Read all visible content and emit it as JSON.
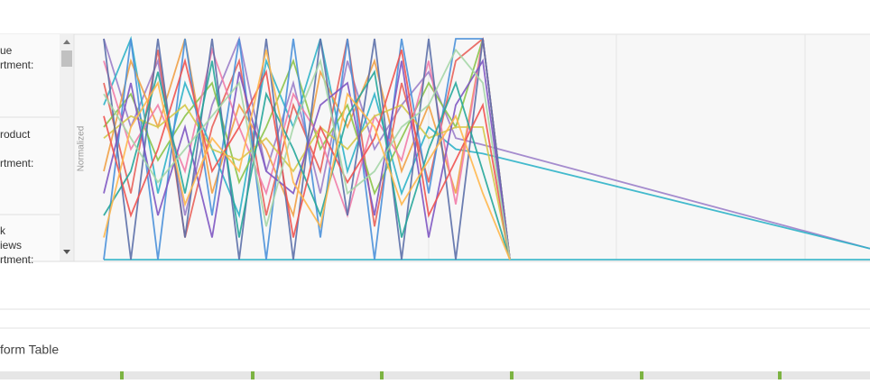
{
  "left_panel": {
    "labels": [
      "ue",
      "rtment:",
      "roduct",
      "rtment:",
      "k",
      "iews",
      "rtment:"
    ]
  },
  "section_title": "form Table",
  "chart_data": {
    "type": "line",
    "ylabel": "Normalized",
    "ylim": [
      0,
      1
    ],
    "xlim": [
      0,
      28.3
    ],
    "series": [
      {
        "color": "#9b7fc9",
        "x": [
          0,
          1,
          2,
          3,
          4,
          5,
          6,
          7,
          8,
          9,
          10,
          11,
          12,
          13,
          14,
          28.3
        ],
        "values": [
          1,
          0.6,
          0.9,
          0.2,
          0.7,
          1,
          0.4,
          0.8,
          0.3,
          0.9,
          0.5,
          0.7,
          0.85,
          0.55,
          0.52,
          0.05
        ]
      },
      {
        "color": "#2fb3c8",
        "x": [
          0,
          1,
          2,
          3,
          4,
          5,
          6,
          7,
          8,
          9,
          10,
          11,
          12,
          13,
          14,
          28.3
        ],
        "values": [
          0.7,
          1,
          0.3,
          0.8,
          0.5,
          0.2,
          0.9,
          0.6,
          1,
          0.4,
          0.75,
          0.3,
          0.6,
          0.5,
          0.48,
          0.05
        ]
      },
      {
        "color": "#2fb3c8",
        "x": [
          0,
          28.3
        ],
        "values": [
          0,
          0
        ]
      },
      {
        "color": "#e8615a",
        "x": [
          0,
          1,
          2,
          3,
          4,
          5,
          6,
          7,
          8,
          9,
          10,
          11,
          12,
          13,
          14,
          15
        ],
        "values": [
          0.8,
          0.3,
          0.95,
          0.1,
          0.6,
          0.9,
          0.2,
          0.7,
          0.4,
          1,
          0.15,
          0.8,
          0.35,
          0.9,
          1,
          0
        ]
      },
      {
        "color": "#f0a046",
        "x": [
          0,
          1,
          2,
          3,
          4,
          5,
          6,
          7,
          8,
          9,
          10,
          11,
          12,
          13,
          14,
          15
        ],
        "values": [
          0.4,
          0.9,
          0.6,
          1,
          0.3,
          0.7,
          0.5,
          0.2,
          0.85,
          0.6,
          0.9,
          0.4,
          0.7,
          0.3,
          1,
          0
        ]
      },
      {
        "color": "#8bc34a",
        "x": [
          0,
          1,
          2,
          3,
          4,
          5,
          6,
          7,
          8,
          9,
          10,
          11,
          12,
          13,
          14,
          15
        ],
        "values": [
          0.6,
          0.75,
          0.45,
          0.65,
          0.8,
          0.35,
          0.6,
          0.9,
          0.5,
          0.7,
          0.3,
          0.55,
          0.8,
          0.6,
          1,
          0
        ]
      },
      {
        "color": "#4a90d9",
        "x": [
          0,
          1,
          2,
          3,
          4,
          5,
          6,
          7,
          8,
          9,
          10,
          11,
          12,
          13,
          14,
          15
        ],
        "values": [
          0,
          1,
          0,
          1,
          0.2,
          1,
          0,
          1,
          0.1,
          1,
          0,
          1,
          0.3,
          1,
          1,
          0
        ]
      },
      {
        "color": "#f17ca8",
        "x": [
          0,
          1,
          2,
          3,
          4,
          5,
          6,
          7,
          8,
          9,
          10,
          11,
          12,
          13,
          14,
          15
        ],
        "values": [
          0.9,
          0.5,
          0.7,
          0.4,
          0.95,
          0.6,
          0.3,
          0.75,
          0.55,
          0.2,
          0.65,
          0.45,
          0.9,
          0.25,
          1,
          0
        ]
      },
      {
        "color": "#d4c84a",
        "x": [
          0,
          1,
          2,
          3,
          4,
          5,
          6,
          7,
          8,
          9,
          10,
          11,
          12,
          13,
          14,
          15
        ],
        "values": [
          0.55,
          0.65,
          0.6,
          0.7,
          0.5,
          0.45,
          0.55,
          0.4,
          0.6,
          0.5,
          0.65,
          0.7,
          0.55,
          0.6,
          0.6,
          0
        ]
      },
      {
        "color": "#5b6fa8",
        "x": [
          0,
          1,
          2,
          3,
          4,
          5,
          6,
          7,
          8,
          9,
          10,
          11,
          12,
          13,
          14,
          15
        ],
        "values": [
          1,
          0,
          1,
          0.1,
          1,
          0,
          1,
          0,
          1,
          0.2,
          1,
          0,
          1,
          0,
          1,
          0
        ]
      },
      {
        "color": "#7e57c2",
        "x": [
          0,
          1,
          2,
          3,
          4,
          5,
          6,
          7,
          8,
          9,
          10,
          11,
          12,
          13,
          14,
          15
        ],
        "values": [
          0.3,
          0.8,
          0.2,
          0.6,
          0.1,
          0.85,
          0.4,
          0.3,
          0.7,
          0.8,
          0.2,
          0.9,
          0.1,
          0.7,
          0.9,
          0
        ]
      },
      {
        "color": "#26a69a",
        "x": [
          0,
          1,
          2,
          3,
          4,
          5,
          6,
          7,
          8,
          9,
          10,
          11,
          12,
          13,
          14,
          15
        ],
        "values": [
          0.2,
          0.4,
          0.85,
          0.3,
          0.9,
          0.1,
          0.75,
          0.5,
          0.2,
          0.65,
          0.85,
          0.1,
          0.5,
          0.8,
          0.4,
          0
        ]
      },
      {
        "color": "#ef5350",
        "x": [
          0,
          1,
          2,
          3,
          4,
          5,
          6,
          7,
          8,
          9,
          10,
          11,
          12,
          13,
          14,
          15
        ],
        "values": [
          0.65,
          0.2,
          0.5,
          0.9,
          0.4,
          0.6,
          0.85,
          0.1,
          0.6,
          0.35,
          0.55,
          0.95,
          0.2,
          0.45,
          0.7,
          0
        ]
      },
      {
        "color": "#a5d6a7",
        "x": [
          0,
          1,
          2,
          3,
          4,
          5,
          6,
          7,
          8,
          9,
          10,
          11,
          12,
          13,
          14,
          15
        ],
        "values": [
          0.75,
          0.55,
          0.35,
          0.5,
          0.65,
          0.8,
          0.15,
          0.6,
          0.9,
          0.3,
          0.4,
          0.6,
          0.7,
          0.95,
          0.8,
          0
        ]
      },
      {
        "color": "#ffb74d",
        "x": [
          0,
          1,
          2,
          3,
          4,
          5,
          6,
          7,
          8,
          9,
          10,
          11,
          12,
          13,
          14,
          15
        ],
        "values": [
          0.1,
          0.6,
          0.8,
          0.25,
          0.55,
          0.4,
          0.95,
          0.35,
          0.15,
          0.75,
          0.6,
          0.25,
          0.45,
          0.65,
          0.3,
          0
        ]
      }
    ]
  }
}
